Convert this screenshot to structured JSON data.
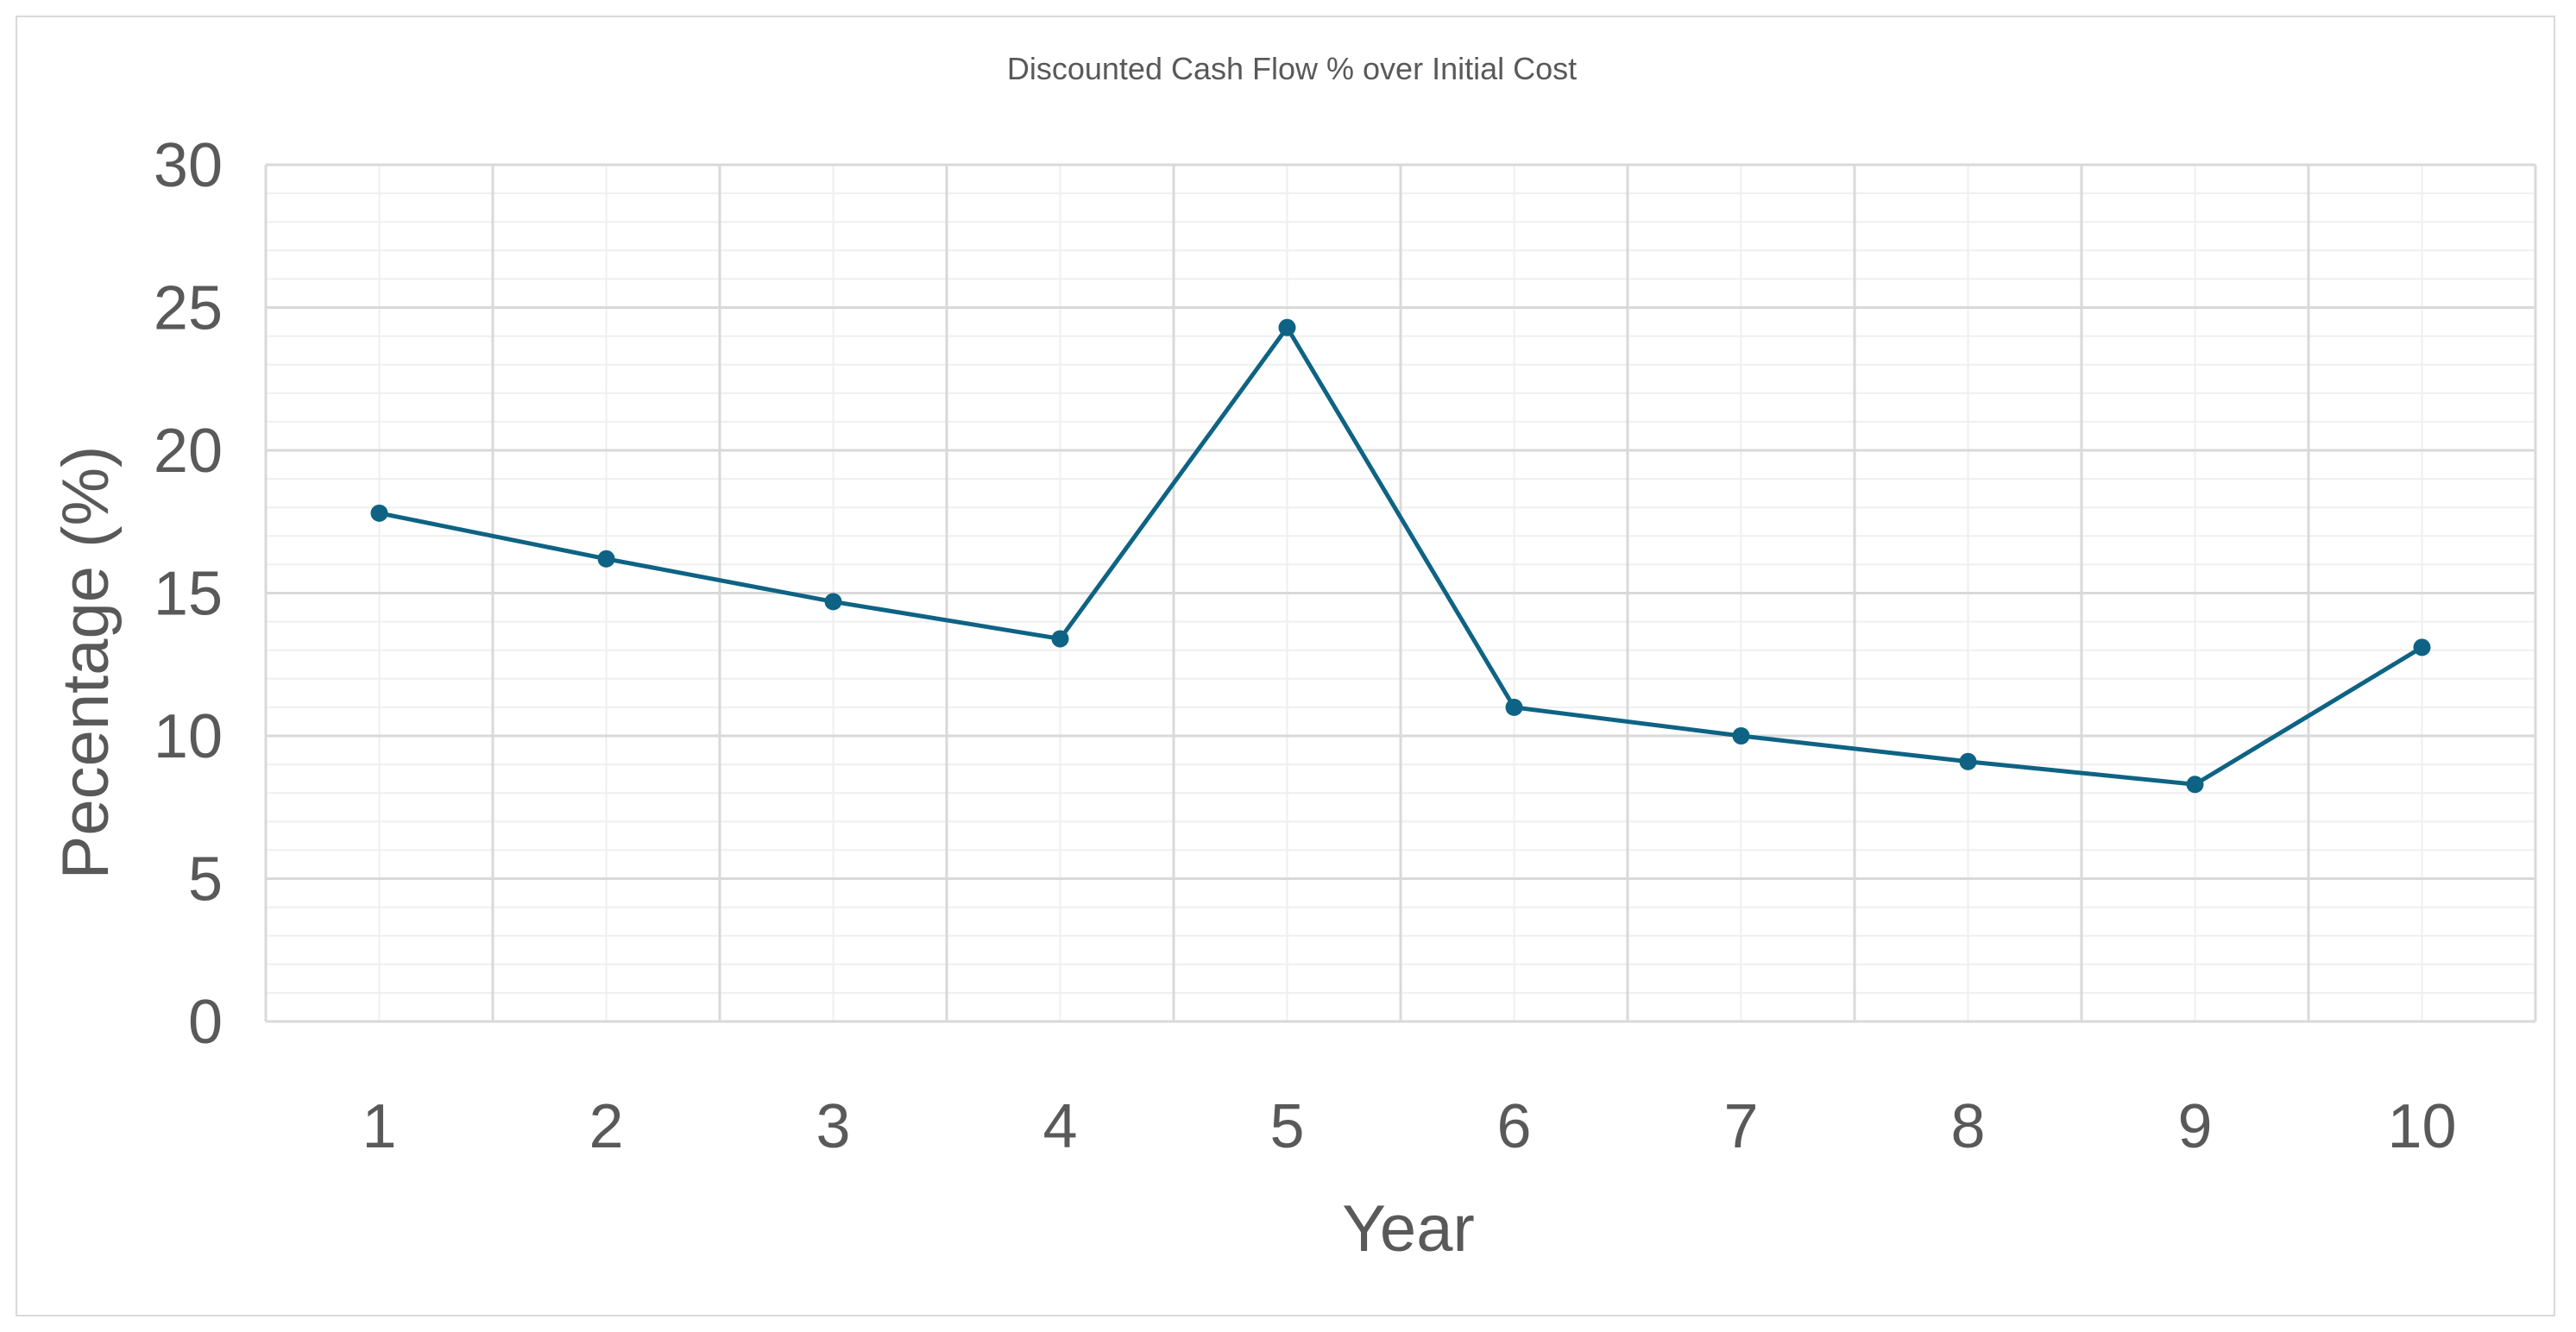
{
  "chart_data": {
    "type": "line",
    "title": "Discounted Cash Flow % over Initial Cost",
    "xlabel": "Year",
    "ylabel": "Pecentage (%)",
    "categories": [
      "1",
      "2",
      "3",
      "4",
      "5",
      "6",
      "7",
      "8",
      "9",
      "10"
    ],
    "series": [
      {
        "values": [
          17.8,
          16.2,
          14.7,
          13.4,
          24.3,
          11.0,
          10.0,
          9.1,
          8.3,
          13.1
        ]
      }
    ],
    "ylim": [
      0,
      30
    ],
    "yticks": [
      "0",
      "5",
      "10",
      "15",
      "20",
      "25",
      "30"
    ],
    "grid": true,
    "legend": "none",
    "colors": {
      "series": "#0e6384",
      "major_grid": "#d9d9d9",
      "minor_grid": "#efefef",
      "text": "#595959"
    }
  }
}
